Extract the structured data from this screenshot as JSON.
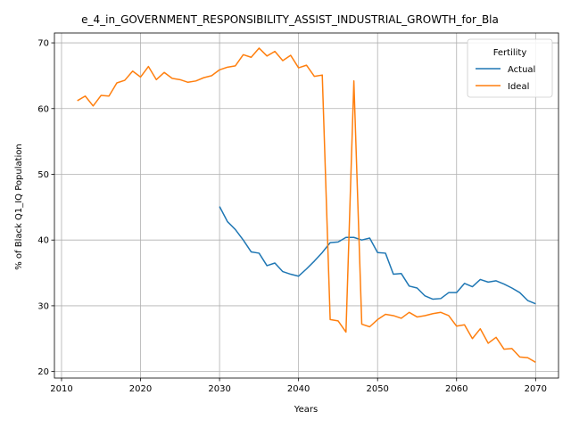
{
  "chart_data": {
    "type": "line",
    "title": "e_4_in_GOVERNMENT_RESPONSIBILITY_ASSIST_INDUSTRIAL_GROWTH_for_Bla",
    "xlabel": "Years",
    "ylabel": "% of Black Q1_IQ Population",
    "xlim": [
      2009.1,
      2072.9
    ],
    "ylim": [
      19.0,
      71.5
    ],
    "xticks": [
      2010,
      2020,
      2030,
      2040,
      2050,
      2060,
      2070
    ],
    "yticks": [
      20,
      30,
      40,
      50,
      60,
      70
    ],
    "grid": true,
    "legend": {
      "title": "Fertility",
      "placement": "top-right"
    },
    "series": [
      {
        "name": "Actual",
        "color": "#1f77b4",
        "x": [
          2030,
          2031,
          2032,
          2033,
          2034,
          2035,
          2036,
          2037,
          2038,
          2039,
          2040,
          2041,
          2042,
          2043,
          2044,
          2045,
          2046,
          2047,
          2048,
          2049,
          2050,
          2051,
          2052,
          2053,
          2054,
          2055,
          2056,
          2057,
          2058,
          2059,
          2060,
          2061,
          2062,
          2063,
          2064,
          2065,
          2066,
          2067,
          2068,
          2069,
          2070
        ],
        "y": [
          45.1,
          42.8,
          41.6,
          40.0,
          38.2,
          38.0,
          36.1,
          36.5,
          35.2,
          34.8,
          34.5,
          35.6,
          36.8,
          38.1,
          39.6,
          39.7,
          40.4,
          40.4,
          40.0,
          40.3,
          38.1,
          38.0,
          34.8,
          34.9,
          33.0,
          32.7,
          31.5,
          31.0,
          31.1,
          32.0,
          32.0,
          33.4,
          32.9,
          34.0,
          33.6,
          33.8,
          33.3,
          32.7,
          32.0,
          30.8,
          30.3
        ]
      },
      {
        "name": "Ideal",
        "color": "#ff7f0e",
        "x": [
          2012,
          2013,
          2014,
          2015,
          2016,
          2017,
          2018,
          2019,
          2020,
          2021,
          2022,
          2023,
          2024,
          2025,
          2026,
          2027,
          2028,
          2029,
          2030,
          2031,
          2032,
          2033,
          2034,
          2035,
          2036,
          2037,
          2038,
          2039,
          2040,
          2041,
          2042,
          2043,
          2044,
          2045,
          2046,
          2047,
          2048,
          2049,
          2050,
          2051,
          2052,
          2053,
          2054,
          2055,
          2056,
          2057,
          2058,
          2059,
          2060,
          2061,
          2062,
          2063,
          2064,
          2065,
          2066,
          2067,
          2068,
          2069,
          2070
        ],
        "y": [
          61.2,
          61.9,
          60.4,
          62.0,
          61.9,
          63.9,
          64.3,
          65.7,
          64.8,
          66.4,
          64.4,
          65.5,
          64.6,
          64.4,
          64.0,
          64.2,
          64.7,
          65.0,
          65.9,
          66.3,
          66.5,
          68.2,
          67.8,
          69.2,
          68.0,
          68.7,
          67.3,
          68.1,
          66.2,
          66.6,
          64.9,
          65.1,
          27.9,
          27.7,
          26.0,
          64.2,
          27.2,
          26.8,
          27.9,
          28.7,
          28.5,
          28.1,
          29.0,
          28.3,
          28.5,
          28.8,
          29.0,
          28.5,
          26.9,
          27.1,
          25.0,
          26.5,
          24.3,
          25.2,
          23.4,
          23.5,
          22.2,
          22.1,
          21.4
        ]
      }
    ]
  }
}
